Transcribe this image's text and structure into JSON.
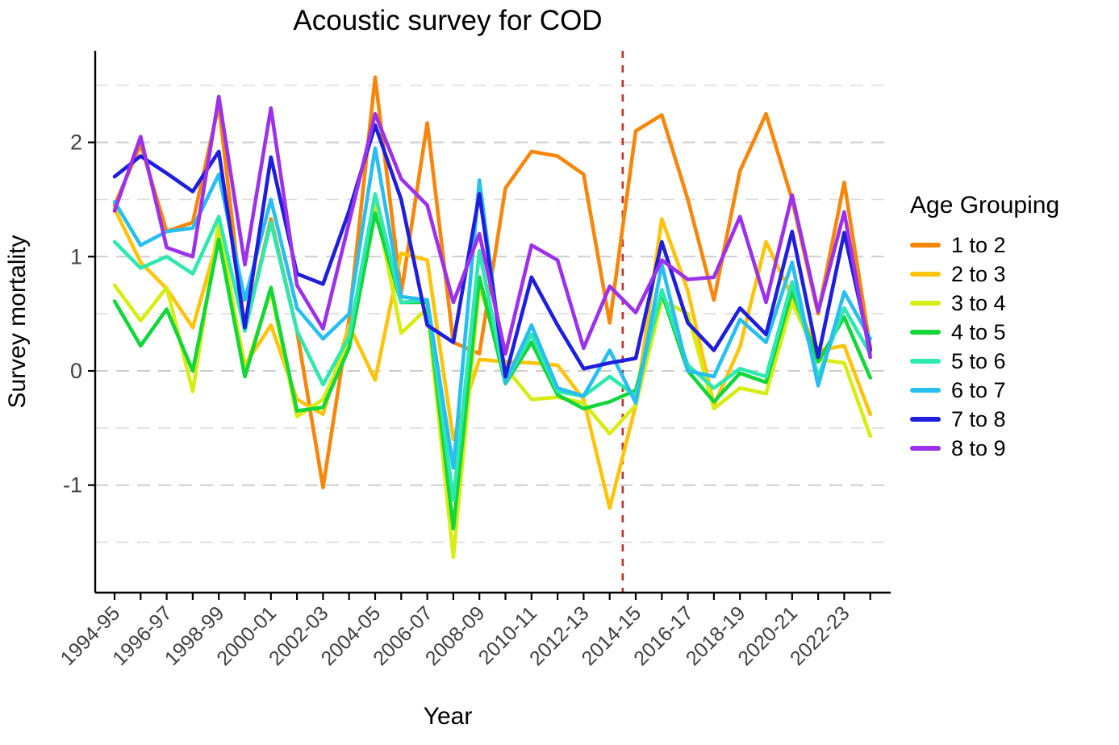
{
  "title": "Acoustic survey for COD",
  "axes": {
    "x_label": "Year",
    "y_label": "Survey mortality",
    "y_tick_labels": [
      "2",
      "1",
      "0",
      "-1"
    ],
    "x_tick_label_color": "#404040",
    "axis_line_color": "#000000"
  },
  "legend": {
    "title": "Age Grouping"
  },
  "colors": {
    "grid_minor": "#DCDCDC",
    "grid_major": "#CDCDCD",
    "vline_red": "#C03028",
    "background": "#FFFFFF"
  },
  "chart_data": {
    "type": "line",
    "title": "Acoustic survey for COD",
    "xlabel": "Year",
    "ylabel": "Survey mortality",
    "legend_title": "Age Grouping",
    "legend_position": "right",
    "grid": "horizontal dashed lines every 0.5 from -1.5 to 2.5",
    "ylim": [
      -1.93,
      2.8
    ],
    "y_ticks_labeled": [
      2,
      1,
      0,
      -1
    ],
    "y_gridlines": [
      2.5,
      2.0,
      1.5,
      1.0,
      0.5,
      0.0,
      -0.5,
      -1.0,
      -1.5
    ],
    "x": [
      "1994-95",
      "1995-96",
      "1996-97",
      "1997-98",
      "1998-99",
      "1999-00",
      "2000-01",
      "2001-02",
      "2002-03",
      "2003-04",
      "2004-05",
      "2005-06",
      "2006-07",
      "2007-08",
      "2008-09",
      "2009-10",
      "2010-11",
      "2011-12",
      "2012-13",
      "2013-14",
      "2014-15",
      "2015-16",
      "2016-17",
      "2017-18",
      "2018-19",
      "2019-20",
      "2020-21",
      "2021-22",
      "2022-23",
      "2023-24"
    ],
    "x_labeled_ticks": [
      "1994-95",
      "1996-97",
      "1998-99",
      "2000-01",
      "2002-03",
      "2004-05",
      "2006-07",
      "2008-09",
      "2010-11",
      "2012-13",
      "2014-15",
      "2016-17",
      "2018-19",
      "2020-21",
      "2022-23"
    ],
    "annotation_vline": {
      "position_between": [
        "2013-14",
        "2014-15"
      ],
      "index_position": 19.5,
      "style": "dashed",
      "color": "#C03028"
    },
    "series": [
      {
        "name": "1 to 2",
        "color": "#F8860B",
        "values": [
          1.45,
          1.98,
          1.22,
          1.3,
          2.33,
          0.35,
          1.33,
          0.35,
          -1.02,
          0.45,
          2.57,
          0.68,
          2.17,
          0.25,
          0.15,
          1.6,
          1.92,
          1.88,
          1.72,
          0.42,
          2.1,
          2.24,
          1.5,
          0.62,
          1.75,
          2.25,
          1.5,
          0.5,
          1.65,
          0.2
        ]
      },
      {
        "name": "2 to 3",
        "color": "#FFC30B",
        "values": [
          1.42,
          0.95,
          0.72,
          0.38,
          1.18,
          0.05,
          0.4,
          -0.25,
          -0.38,
          0.4,
          -0.08,
          1.03,
          0.97,
          -0.6,
          0.1,
          0.08,
          0.07,
          0.05,
          -0.25,
          -1.2,
          -0.3,
          1.33,
          0.7,
          -0.3,
          0.21,
          1.13,
          0.65,
          0.18,
          0.22,
          -0.38
        ]
      },
      {
        "name": "3 to 4",
        "color": "#D7EC13",
        "values": [
          0.75,
          0.44,
          0.73,
          -0.18,
          1.3,
          0.0,
          0.7,
          -0.4,
          -0.25,
          0.25,
          1.48,
          0.33,
          0.55,
          -1.63,
          0.75,
          0.03,
          -0.25,
          -0.23,
          -0.28,
          -0.55,
          -0.3,
          0.62,
          0.5,
          -0.33,
          -0.15,
          -0.2,
          0.6,
          0.1,
          0.07,
          -0.57
        ]
      },
      {
        "name": "4 to 5",
        "color": "#12D63A",
        "values": [
          0.61,
          0.22,
          0.54,
          0.0,
          1.15,
          -0.05,
          0.73,
          -0.35,
          -0.32,
          0.2,
          1.38,
          0.6,
          0.6,
          -1.38,
          0.82,
          -0.11,
          0.25,
          -0.21,
          -0.33,
          -0.27,
          -0.17,
          0.68,
          0.0,
          -0.27,
          -0.02,
          -0.1,
          0.7,
          0.08,
          0.47,
          -0.06
        ]
      },
      {
        "name": "5 to 6",
        "color": "#2EE8AF",
        "values": [
          1.13,
          0.9,
          1.0,
          0.85,
          1.35,
          0.35,
          1.3,
          0.35,
          -0.12,
          0.3,
          1.55,
          0.6,
          0.62,
          -1.13,
          1.05,
          -0.1,
          0.32,
          -0.18,
          -0.22,
          -0.05,
          -0.22,
          0.71,
          0.05,
          -0.15,
          0.02,
          -0.05,
          0.78,
          -0.05,
          0.55,
          0.15
        ]
      },
      {
        "name": "6 to 7",
        "color": "#29BEF0",
        "values": [
          1.48,
          1.1,
          1.22,
          1.25,
          1.72,
          0.62,
          1.5,
          0.55,
          0.28,
          0.5,
          1.95,
          0.65,
          0.62,
          -0.85,
          1.67,
          -0.1,
          0.4,
          -0.15,
          -0.22,
          0.18,
          -0.28,
          0.93,
          0.0,
          -0.05,
          0.45,
          0.25,
          0.95,
          -0.13,
          0.69,
          0.28
        ]
      },
      {
        "name": "7 to 8",
        "color": "#1E1EDC",
        "values": [
          1.7,
          1.88,
          1.73,
          1.57,
          1.92,
          0.38,
          1.87,
          0.85,
          0.76,
          1.4,
          2.15,
          1.5,
          0.4,
          0.25,
          1.55,
          -0.05,
          0.82,
          0.4,
          0.02,
          0.07,
          0.11,
          1.13,
          0.42,
          0.18,
          0.55,
          0.32,
          1.22,
          0.12,
          1.21,
          0.18
        ]
      },
      {
        "name": "8 to 9",
        "color": "#9C31EC",
        "values": [
          1.4,
          2.05,
          1.08,
          1.0,
          2.4,
          0.93,
          2.3,
          0.75,
          0.37,
          1.3,
          2.25,
          1.68,
          1.45,
          0.6,
          1.2,
          0.15,
          1.1,
          0.97,
          0.2,
          0.74,
          0.51,
          0.97,
          0.8,
          0.82,
          1.35,
          0.6,
          1.54,
          0.52,
          1.39,
          0.12
        ]
      }
    ]
  }
}
